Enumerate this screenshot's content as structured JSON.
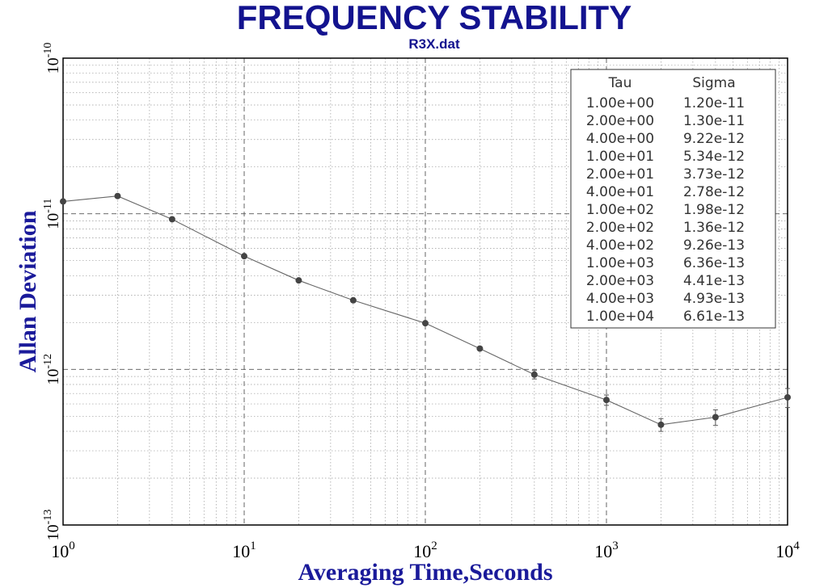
{
  "title": "FREQUENCY STABILITY",
  "subtitle": "R3X.dat",
  "chart_data": {
    "type": "line",
    "title": "FREQUENCY STABILITY",
    "subtitle": "R3X.dat",
    "xlabel": "Averaging Time,Seconds",
    "ylabel": "Allan Deviation",
    "xscale": "log",
    "yscale": "log",
    "xlim": [
      1,
      10000
    ],
    "ylim": [
      1e-13,
      1e-10
    ],
    "grid": true,
    "x_ticks": [
      {
        "base": "10",
        "exp": "0"
      },
      {
        "base": "10",
        "exp": "1"
      },
      {
        "base": "10",
        "exp": "2"
      },
      {
        "base": "10",
        "exp": "3"
      },
      {
        "base": "10",
        "exp": "4"
      }
    ],
    "y_ticks": [
      {
        "base": "10",
        "exp": "-10"
      },
      {
        "base": "10",
        "exp": "-11"
      },
      {
        "base": "10",
        "exp": "-12"
      },
      {
        "base": "10",
        "exp": "-13"
      }
    ],
    "x": [
      1,
      2,
      4,
      10,
      20,
      40,
      100,
      200,
      400,
      1000,
      2000,
      4000,
      10000
    ],
    "y": [
      1.2e-11,
      1.3e-11,
      9.22e-12,
      5.34e-12,
      3.73e-12,
      2.78e-12,
      1.98e-12,
      1.36e-12,
      9.26e-13,
      6.36e-13,
      4.41e-13,
      4.93e-13,
      6.61e-13
    ],
    "table": {
      "headers": [
        "Tau",
        "Sigma"
      ],
      "rows": [
        [
          "1.00e+00",
          "1.20e-11"
        ],
        [
          "2.00e+00",
          "1.30e-11"
        ],
        [
          "4.00e+00",
          "9.22e-12"
        ],
        [
          "1.00e+01",
          "5.34e-12"
        ],
        [
          "2.00e+01",
          "3.73e-12"
        ],
        [
          "4.00e+01",
          "2.78e-12"
        ],
        [
          "1.00e+02",
          "1.98e-12"
        ],
        [
          "2.00e+02",
          "1.36e-12"
        ],
        [
          "4.00e+02",
          "9.26e-13"
        ],
        [
          "1.00e+03",
          "6.36e-13"
        ],
        [
          "2.00e+03",
          "4.41e-13"
        ],
        [
          "4.00e+03",
          "4.93e-13"
        ],
        [
          "1.00e+04",
          "6.61e-13"
        ]
      ]
    },
    "colors": {
      "title": "#13138f",
      "axis_title": "#1a1a9a",
      "series": "#444444"
    }
  }
}
